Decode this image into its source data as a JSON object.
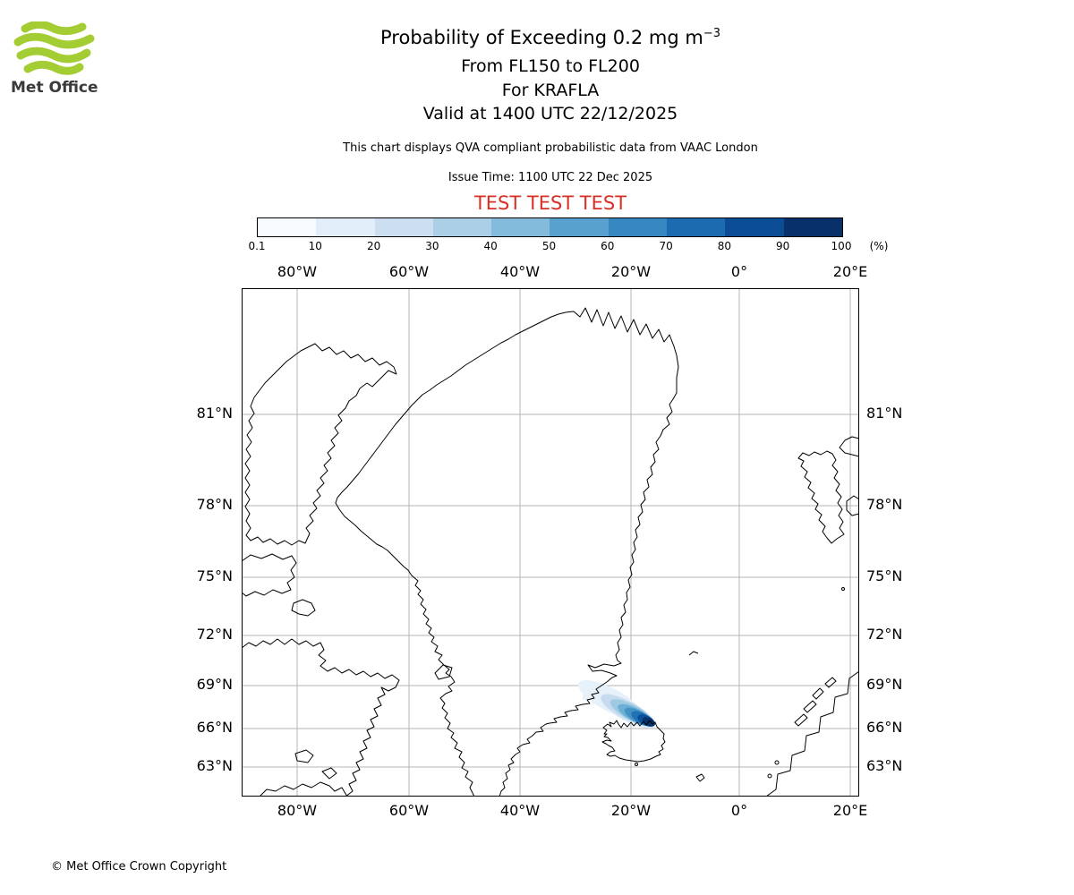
{
  "logo": {
    "brand": "Met Office",
    "brand_green": "#a4cd33"
  },
  "header": {
    "title_main": "Probability of Exceeding 0.2 mg m",
    "title_sup": "−3",
    "subtitle1": "From FL150 to FL200",
    "subtitle2": "For KRAFLA",
    "subtitle3": "Valid at 1400 UTC 22/12/2025",
    "description": "This chart displays QVA compliant probabilistic data from VAAC London",
    "issue_time": "Issue Time: 1100 UTC 22 Dec 2025",
    "test_banner": "TEST TEST TEST",
    "test_color": "#d93025"
  },
  "colorbar": {
    "unit": "(%)",
    "tick_labels": [
      "0.1",
      "10",
      "20",
      "30",
      "40",
      "50",
      "60",
      "70",
      "80",
      "90",
      "100"
    ],
    "colors": [
      "#f7fbff",
      "#e1edf8",
      "#ccdff1",
      "#abd0e6",
      "#82bbdb",
      "#58a1cf",
      "#3787c0",
      "#1c6bb0",
      "#0b4d94",
      "#08306b"
    ]
  },
  "map": {
    "lon_labels": [
      "80°W",
      "60°W",
      "40°W",
      "20°W",
      "0°",
      "20°E"
    ],
    "lat_labels": [
      "81°N",
      "78°N",
      "75°N",
      "72°N",
      "69°N",
      "66°N",
      "63°N"
    ],
    "regions": [
      "Greenland",
      "Ellesmere Island",
      "Devon Island",
      "Baffin Island",
      "Iceland",
      "Norway",
      "Svalbard",
      "Jan Mayen",
      "Faroe Islands"
    ],
    "plume": {
      "description": "Ash probability plume extending northwest from Iceland",
      "max_probability_color": "#08306b"
    }
  },
  "footer": {
    "copyright": "© Met Office Crown Copyright"
  }
}
